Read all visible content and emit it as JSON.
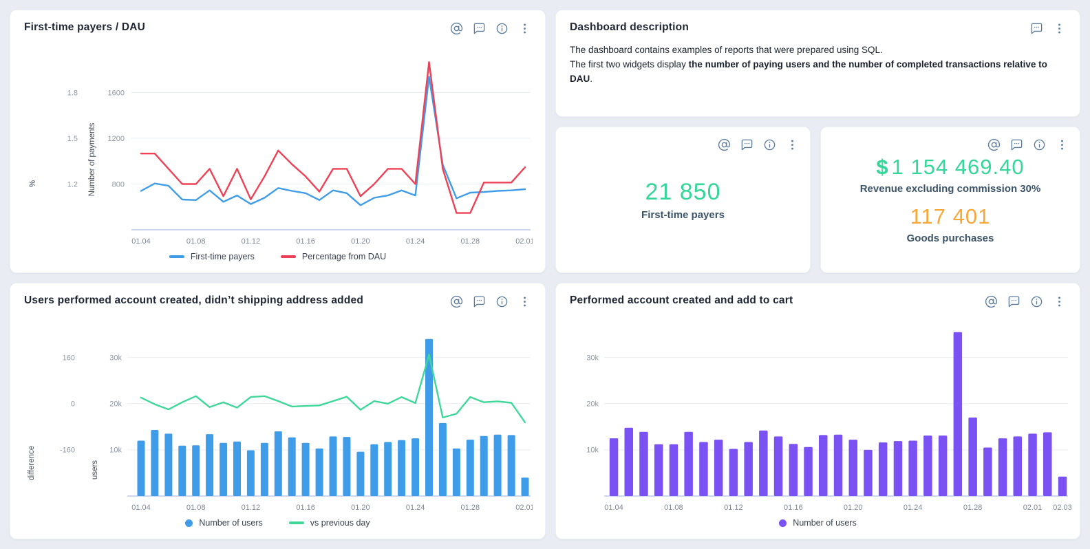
{
  "colors": {
    "blue": "#3e9ce9",
    "red": "#ef4155",
    "green_line": "#3fd79a",
    "purple": "#7a52f3",
    "kpi_green": "#35d69a",
    "kpi_orange": "#f7a83a",
    "icon": "#5b7b9d"
  },
  "widgets": {
    "payers_dau": {
      "title": "First-time payers / DAU",
      "icons": [
        "mention",
        "comment",
        "info",
        "menu"
      ]
    },
    "description": {
      "title": "Dashboard description",
      "icons": [
        "comment",
        "menu"
      ],
      "body": {
        "line1": "The dashboard contains examples of reports that were prepared using SQL.",
        "line2_prefix": "The first two widgets display ",
        "line2_bold": "the number of paying users and the number of completed transactions relative to DAU",
        "line2_suffix": "."
      }
    },
    "kpi_first_time_payers": {
      "icons": [
        "mention",
        "comment",
        "info",
        "menu"
      ],
      "value": "21 850",
      "label": "First-time payers"
    },
    "kpi_revenue": {
      "icons": [
        "mention",
        "comment",
        "info",
        "menu"
      ],
      "items": [
        {
          "currency": "$",
          "value": "1 154 469.40",
          "label": "Revenue excluding commission 30%",
          "color": "#35d69a"
        },
        {
          "currency": "",
          "value": "117 401",
          "label": "Goods purchases",
          "color": "#f7a83a"
        }
      ]
    },
    "no_shipping": {
      "title": "Users performed account created, didn’t shipping address added",
      "icons": [
        "mention",
        "comment",
        "info",
        "menu"
      ]
    },
    "add_to_cart": {
      "title": "Performed account created and add to cart",
      "icons": [
        "mention",
        "comment",
        "info",
        "menu"
      ]
    }
  },
  "legends": {
    "payers_dau": [
      {
        "label": "First-time payers",
        "color": "#3e9ce9",
        "swatch": "line"
      },
      {
        "label": "Percentage from DAU",
        "color": "#ef4155",
        "swatch": "line"
      }
    ],
    "no_shipping": [
      {
        "label": "Number of users",
        "color": "#3e9ce9",
        "swatch": "dot"
      },
      {
        "label": "vs previous day",
        "color": "#3fd79a",
        "swatch": "line"
      }
    ],
    "add_to_cart": [
      {
        "label": "Number of users",
        "color": "#7a52f3",
        "swatch": "dot"
      }
    ]
  },
  "chart_data": [
    {
      "id": "payers_dau",
      "type": "line",
      "title": "First-time payers / DAU",
      "grid": true,
      "legend_position": "bottom",
      "x_tick_labels": [
        "01.04",
        "01.08",
        "01.12",
        "01.16",
        "01.20",
        "01.24",
        "01.28",
        "02.01"
      ],
      "x_tick_indices": [
        0,
        4,
        8,
        12,
        16,
        20,
        24,
        28
      ],
      "axes": {
        "outer": {
          "label": "%",
          "ticks": [
            1.2,
            1.5,
            1.8
          ]
        },
        "inner": {
          "label": "Number of payments",
          "ticks": [
            800,
            1200,
            1600
          ],
          "range": [
            400,
            1880
          ]
        }
      },
      "series": [
        {
          "name": "First-time payers",
          "kind": "line",
          "axis": "inner",
          "color": "#3e9ce9",
          "values": [
            740,
            805,
            785,
            665,
            660,
            745,
            645,
            700,
            625,
            680,
            765,
            740,
            720,
            660,
            745,
            720,
            615,
            680,
            700,
            745,
            700,
            1740,
            970,
            675,
            725,
            730,
            740,
            745,
            755
          ]
        },
        {
          "name": "Percentage from DAU",
          "kind": "line",
          "axis": "outer",
          "color": "#ef4155",
          "values": [
            1.4,
            1.4,
            1.3,
            1.2,
            1.2,
            1.3,
            1.12,
            1.3,
            1.1,
            1.25,
            1.42,
            1.33,
            1.25,
            1.15,
            1.3,
            1.3,
            1.12,
            1.2,
            1.3,
            1.3,
            1.2,
            2.0,
            1.3,
            1.01,
            1.01,
            1.21,
            1.21,
            1.21,
            1.31
          ]
        }
      ]
    },
    {
      "id": "no_shipping",
      "type": "bar",
      "title": "Users performed account created, didn’t shipping address added",
      "grid": true,
      "legend_position": "bottom",
      "x_tick_labels": [
        "01.04",
        "01.08",
        "01.12",
        "01.16",
        "01.20",
        "01.24",
        "01.28",
        "02.01"
      ],
      "x_tick_indices": [
        0,
        4,
        8,
        12,
        16,
        20,
        24,
        28
      ],
      "axes": {
        "outer": {
          "label": "difference",
          "ticks": [
            -160,
            0,
            160
          ]
        },
        "inner": {
          "label": "users",
          "ticks": [
            10000,
            20000,
            30000
          ],
          "tick_labels": [
            "10k",
            "20k",
            "30k"
          ],
          "range": [
            0,
            36500
          ]
        }
      },
      "series": [
        {
          "name": "Number of users",
          "kind": "bar",
          "axis": "inner",
          "color": "#3e9ce9",
          "values": [
            12000,
            14300,
            13500,
            10900,
            11000,
            13400,
            11500,
            11800,
            9900,
            11500,
            14000,
            12700,
            11500,
            10300,
            12900,
            12800,
            9600,
            11200,
            11700,
            12100,
            12500,
            34000,
            15800,
            10300,
            12200,
            13000,
            13300,
            13200,
            4000
          ]
        },
        {
          "name": "vs previous day",
          "kind": "line",
          "axis": "outer",
          "color": "#3fd79a",
          "values": [
            21,
            -2,
            -20,
            5,
            26,
            -12,
            5,
            -14,
            23,
            26,
            9,
            -10,
            -8,
            -6,
            9,
            24,
            -21,
            9,
            0,
            23,
            2,
            170,
            -48,
            -35,
            23,
            5,
            8,
            3,
            -65
          ]
        }
      ]
    },
    {
      "id": "add_to_cart",
      "type": "bar",
      "title": "Performed account created and add to cart",
      "grid": true,
      "legend_position": "bottom",
      "x_tick_labels": [
        "01.04",
        "01.08",
        "01.12",
        "01.16",
        "01.20",
        "01.24",
        "01.28",
        "02.01",
        "02.03"
      ],
      "x_tick_indices": [
        0,
        4,
        8,
        12,
        16,
        20,
        24,
        28,
        30
      ],
      "axes": {
        "inner": {
          "label": "",
          "ticks": [
            10000,
            20000,
            30000
          ],
          "tick_labels": [
            "10k",
            "20k",
            "30k"
          ],
          "range": [
            0,
            36500
          ]
        }
      },
      "series": [
        {
          "name": "Number of users",
          "kind": "bar",
          "axis": "inner",
          "color": "#7a52f3",
          "values": [
            12500,
            14800,
            13900,
            11200,
            11200,
            13900,
            11700,
            12200,
            10200,
            11700,
            14200,
            12900,
            11300,
            10600,
            13200,
            13300,
            12200,
            10000,
            11600,
            11900,
            12000,
            13100,
            13100,
            35500,
            17000,
            10500,
            12500,
            12900,
            13500,
            13800,
            4200
          ]
        }
      ]
    }
  ]
}
